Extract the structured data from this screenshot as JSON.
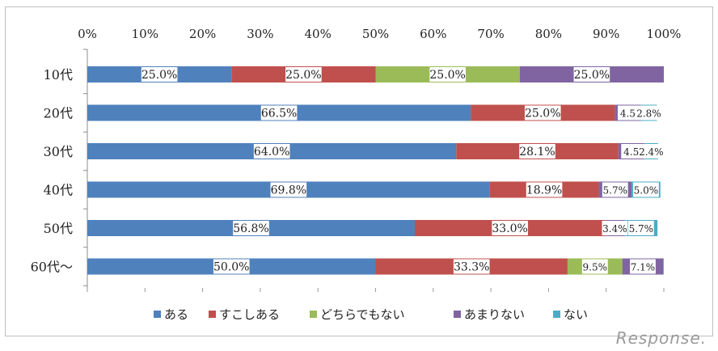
{
  "chart_data": {
    "type": "bar",
    "orientation": "horizontal",
    "stacked": "percent",
    "categories": [
      "10代",
      "20代",
      "30代",
      "40代",
      "50代",
      "60代～"
    ],
    "series": [
      {
        "name": "ある",
        "color": "#4f81bd",
        "values": [
          25.0,
          66.5,
          64.0,
          69.8,
          56.8,
          50.0
        ],
        "labels": [
          "25.0%",
          "66.5%",
          "64.0%",
          "69.8%",
          "56.8%",
          "50.0%"
        ]
      },
      {
        "name": "すこしある",
        "color": "#c0504d",
        "values": [
          25.0,
          25.0,
          28.1,
          18.9,
          33.0,
          33.3
        ],
        "labels": [
          "25.0%",
          "25.0%",
          "28.1%",
          "18.9%",
          "33.0%",
          "33.3%"
        ]
      },
      {
        "name": "どちらでもない",
        "color": "#9bbb59",
        "values": [
          25.0,
          0,
          0,
          0,
          0,
          9.5
        ],
        "labels": [
          "25.0%",
          "",
          "",
          "",
          "",
          "9.5%"
        ]
      },
      {
        "name": "あまりない",
        "color": "#8064a2",
        "values": [
          25.0,
          4.5,
          4.5,
          5.7,
          3.4,
          7.1
        ],
        "labels": [
          "25.0%",
          "4.5",
          "4.5",
          "5.7%",
          "3.4%",
          "7.1%"
        ]
      },
      {
        "name": "ない",
        "color": "#4bacc6",
        "values": [
          0,
          2.8,
          2.4,
          5.0,
          5.7,
          0.1
        ],
        "labels": [
          "",
          "2.8%",
          "2.4%",
          "5.0%",
          "5.7%",
          ""
        ]
      }
    ],
    "ticks": [
      "0%",
      "10%",
      "20%",
      "30%",
      "40%",
      "50%",
      "60%",
      "70%",
      "80%",
      "90%",
      "100%"
    ],
    "xlim": [
      0,
      100
    ],
    "grid": false,
    "legend_position": "bottom",
    "title": "",
    "xlabel": "",
    "ylabel": ""
  },
  "watermark": "Response."
}
